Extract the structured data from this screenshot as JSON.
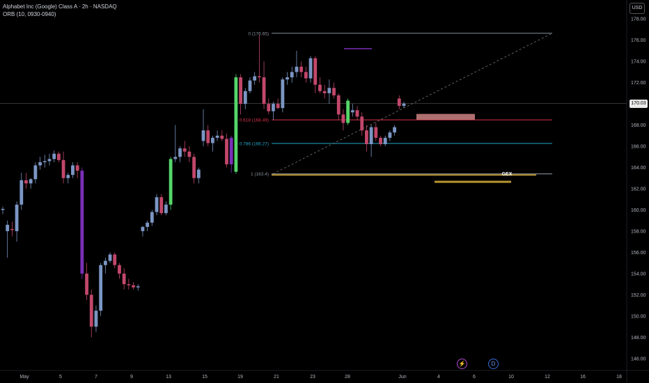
{
  "header": {
    "title": "Alphabet Inc (Google) Class A · 2h · NASDAQ",
    "indicator": "ORB (10, 0930-0940)"
  },
  "currency_button": "USD",
  "last_price_tag": "170.03",
  "colors": {
    "up": "#7b96c4",
    "down": "#c2476b",
    "fib_top": "#8a8f99",
    "fib_618": "#d9344a",
    "fib_786": "#22a7c9",
    "fib_1": "#8a8f99",
    "gex": "#b8962f",
    "purple": "#7a2fb8",
    "green": "#54d66a"
  },
  "chart_data": {
    "type": "candlestick",
    "y_axis": {
      "min": 145,
      "max": 179,
      "ticks": [
        "146.00",
        "148.00",
        "150.00",
        "152.00",
        "154.00",
        "156.00",
        "158.00",
        "160.00",
        "162.00",
        "164.00",
        "166.00",
        "168.00",
        "170.00",
        "172.00",
        "174.00",
        "176.00",
        "178.00"
      ]
    },
    "x_axis": {
      "ticks": [
        "May",
        "5",
        "7",
        "9",
        "13",
        "15",
        "19",
        "21",
        "23",
        "28",
        "Jun",
        "4",
        "6",
        "10",
        "12",
        "16",
        "18"
      ]
    },
    "fib_levels": [
      {
        "label": "0 (176.65)",
        "value": 176.65
      },
      {
        "label": "0.618 (168.49)",
        "value": 168.49
      },
      {
        "label": "0.786 (166.27)",
        "value": 166.27
      },
      {
        "label": "1 (163.4)",
        "value": 163.4
      }
    ],
    "annotations": [
      {
        "label": "GEX",
        "value": 162.7
      }
    ],
    "last_price": 170.03,
    "candles": [
      [
        160,
        160.3,
        159.6,
        160.1
      ],
      [
        158,
        159,
        155.5,
        158.6
      ],
      [
        158.2,
        158.9,
        157.5,
        158.1
      ],
      [
        158,
        160.8,
        157,
        160.5
      ],
      [
        160.5,
        163.5,
        160,
        162.8
      ],
      [
        162.8,
        163.5,
        162,
        162.5
      ],
      [
        162.5,
        163,
        162,
        162.9
      ],
      [
        162.9,
        164.5,
        162.5,
        164.2
      ],
      [
        164.2,
        165,
        163.8,
        164.5
      ],
      [
        164.5,
        165.2,
        164,
        164.6
      ],
      [
        164.6,
        165.3,
        164.2,
        164.8
      ],
      [
        164.8,
        165.6,
        164.5,
        165.3
      ],
      [
        165.3,
        165.5,
        164.5,
        164.7
      ],
      [
        164.7,
        165.5,
        162.5,
        163
      ],
      [
        163,
        163.5,
        162.5,
        163.3
      ],
      [
        163.3,
        164.5,
        163,
        164.2
      ],
      [
        164.2,
        164.5,
        163,
        163.7
      ],
      [
        163.7,
        164,
        153.5,
        154
      ],
      [
        154,
        155,
        151.5,
        152
      ],
      [
        152,
        152.5,
        148,
        149
      ],
      [
        149,
        151,
        148.5,
        150.5
      ],
      [
        150.5,
        155,
        150,
        154.8
      ],
      [
        154.8,
        155.5,
        154,
        155.2
      ],
      [
        155.2,
        156,
        155,
        155.8
      ],
      [
        155.8,
        156,
        154.5,
        154.8
      ],
      [
        154.8,
        155,
        153.5,
        154
      ],
      [
        154,
        154.5,
        152.5,
        153
      ],
      [
        153,
        153.5,
        152.5,
        152.9
      ],
      [
        152.9,
        153.2,
        152.5,
        152.7
      ],
      [
        152.7,
        153,
        152.4,
        152.8
      ],
      [
        158,
        158.5,
        157.5,
        158.4
      ],
      [
        158.4,
        159,
        158,
        158.8
      ],
      [
        158.8,
        160,
        158.5,
        159.8
      ],
      [
        159.8,
        161.5,
        159.5,
        161.2
      ],
      [
        161.2,
        161.5,
        159.5,
        159.7
      ],
      [
        159.7,
        160.8,
        159.5,
        160.5
      ],
      [
        160.5,
        165,
        160,
        164.8
      ],
      [
        164.8,
        168,
        164.5,
        165
      ],
      [
        165,
        166,
        164.5,
        165.8
      ],
      [
        165.8,
        166.5,
        165,
        165.5
      ],
      [
        165.5,
        166,
        164.5,
        165
      ],
      [
        165,
        165.3,
        162.5,
        163
      ],
      [
        163,
        164,
        162.5,
        163.8
      ],
      [
        166.5,
        169.5,
        166,
        167.5
      ],
      [
        167.5,
        168,
        166,
        166.3
      ],
      [
        166.3,
        167,
        165.5,
        166.8
      ],
      [
        166.8,
        167.5,
        166.5,
        167
      ],
      [
        167,
        167.5,
        166.5,
        166.7
      ],
      [
        166.7,
        167.2,
        164,
        164.3
      ],
      [
        164.3,
        167,
        163.5,
        166.8
      ],
      [
        163.6,
        172.8,
        163.4,
        172.5
      ],
      [
        172.5,
        172.8,
        169,
        170
      ],
      [
        170,
        171.5,
        169.5,
        171.2
      ],
      [
        171.2,
        172.5,
        171,
        172.2
      ],
      [
        172.2,
        173,
        171.8,
        172.6
      ],
      [
        172.6,
        176.5,
        172,
        172.5
      ],
      [
        172.5,
        174,
        169.5,
        170
      ],
      [
        170,
        170.5,
        169,
        169.3
      ],
      [
        169.3,
        170.2,
        168.5,
        170
      ],
      [
        170,
        170.5,
        169.5,
        169.6
      ],
      [
        169.6,
        172.5,
        169.2,
        172.3
      ],
      [
        172.3,
        173,
        171.8,
        172.5
      ],
      [
        172.5,
        173.5,
        172,
        173
      ],
      [
        173,
        175,
        172.5,
        173.5
      ],
      [
        173.5,
        174,
        172.5,
        173
      ],
      [
        173,
        173.5,
        172,
        172.4
      ],
      [
        172.4,
        174.5,
        172,
        174.3
      ],
      [
        174.3,
        174.5,
        171,
        171.8
      ],
      [
        171.8,
        172.5,
        171,
        171.2
      ],
      [
        171.2,
        171.8,
        170.5,
        171
      ],
      [
        171,
        172.3,
        170,
        171.5
      ],
      [
        171.5,
        172,
        170.5,
        170.8
      ],
      [
        170.8,
        171,
        168.5,
        169
      ],
      [
        169,
        169.5,
        167.5,
        168.2
      ],
      [
        168.2,
        170.5,
        168,
        170.3
      ],
      [
        169.2,
        170,
        168.8,
        169.4
      ],
      [
        169.4,
        169.8,
        168.5,
        168.8
      ],
      [
        168.8,
        169.2,
        167,
        167.5
      ],
      [
        167.5,
        168,
        165.5,
        166.2
      ],
      [
        166.2,
        168,
        165,
        167.8
      ],
      [
        167.8,
        168.2,
        166.5,
        166.8
      ],
      [
        166.8,
        167,
        166,
        166.2
      ],
      [
        166.2,
        167,
        166,
        166.8
      ],
      [
        166.8,
        167.5,
        166.5,
        167.3
      ],
      [
        167.3,
        168,
        167,
        167.8
      ],
      [
        170.5,
        170.8,
        169.5,
        169.8
      ],
      [
        169.8,
        170.2,
        169.6,
        170.03
      ]
    ]
  }
}
